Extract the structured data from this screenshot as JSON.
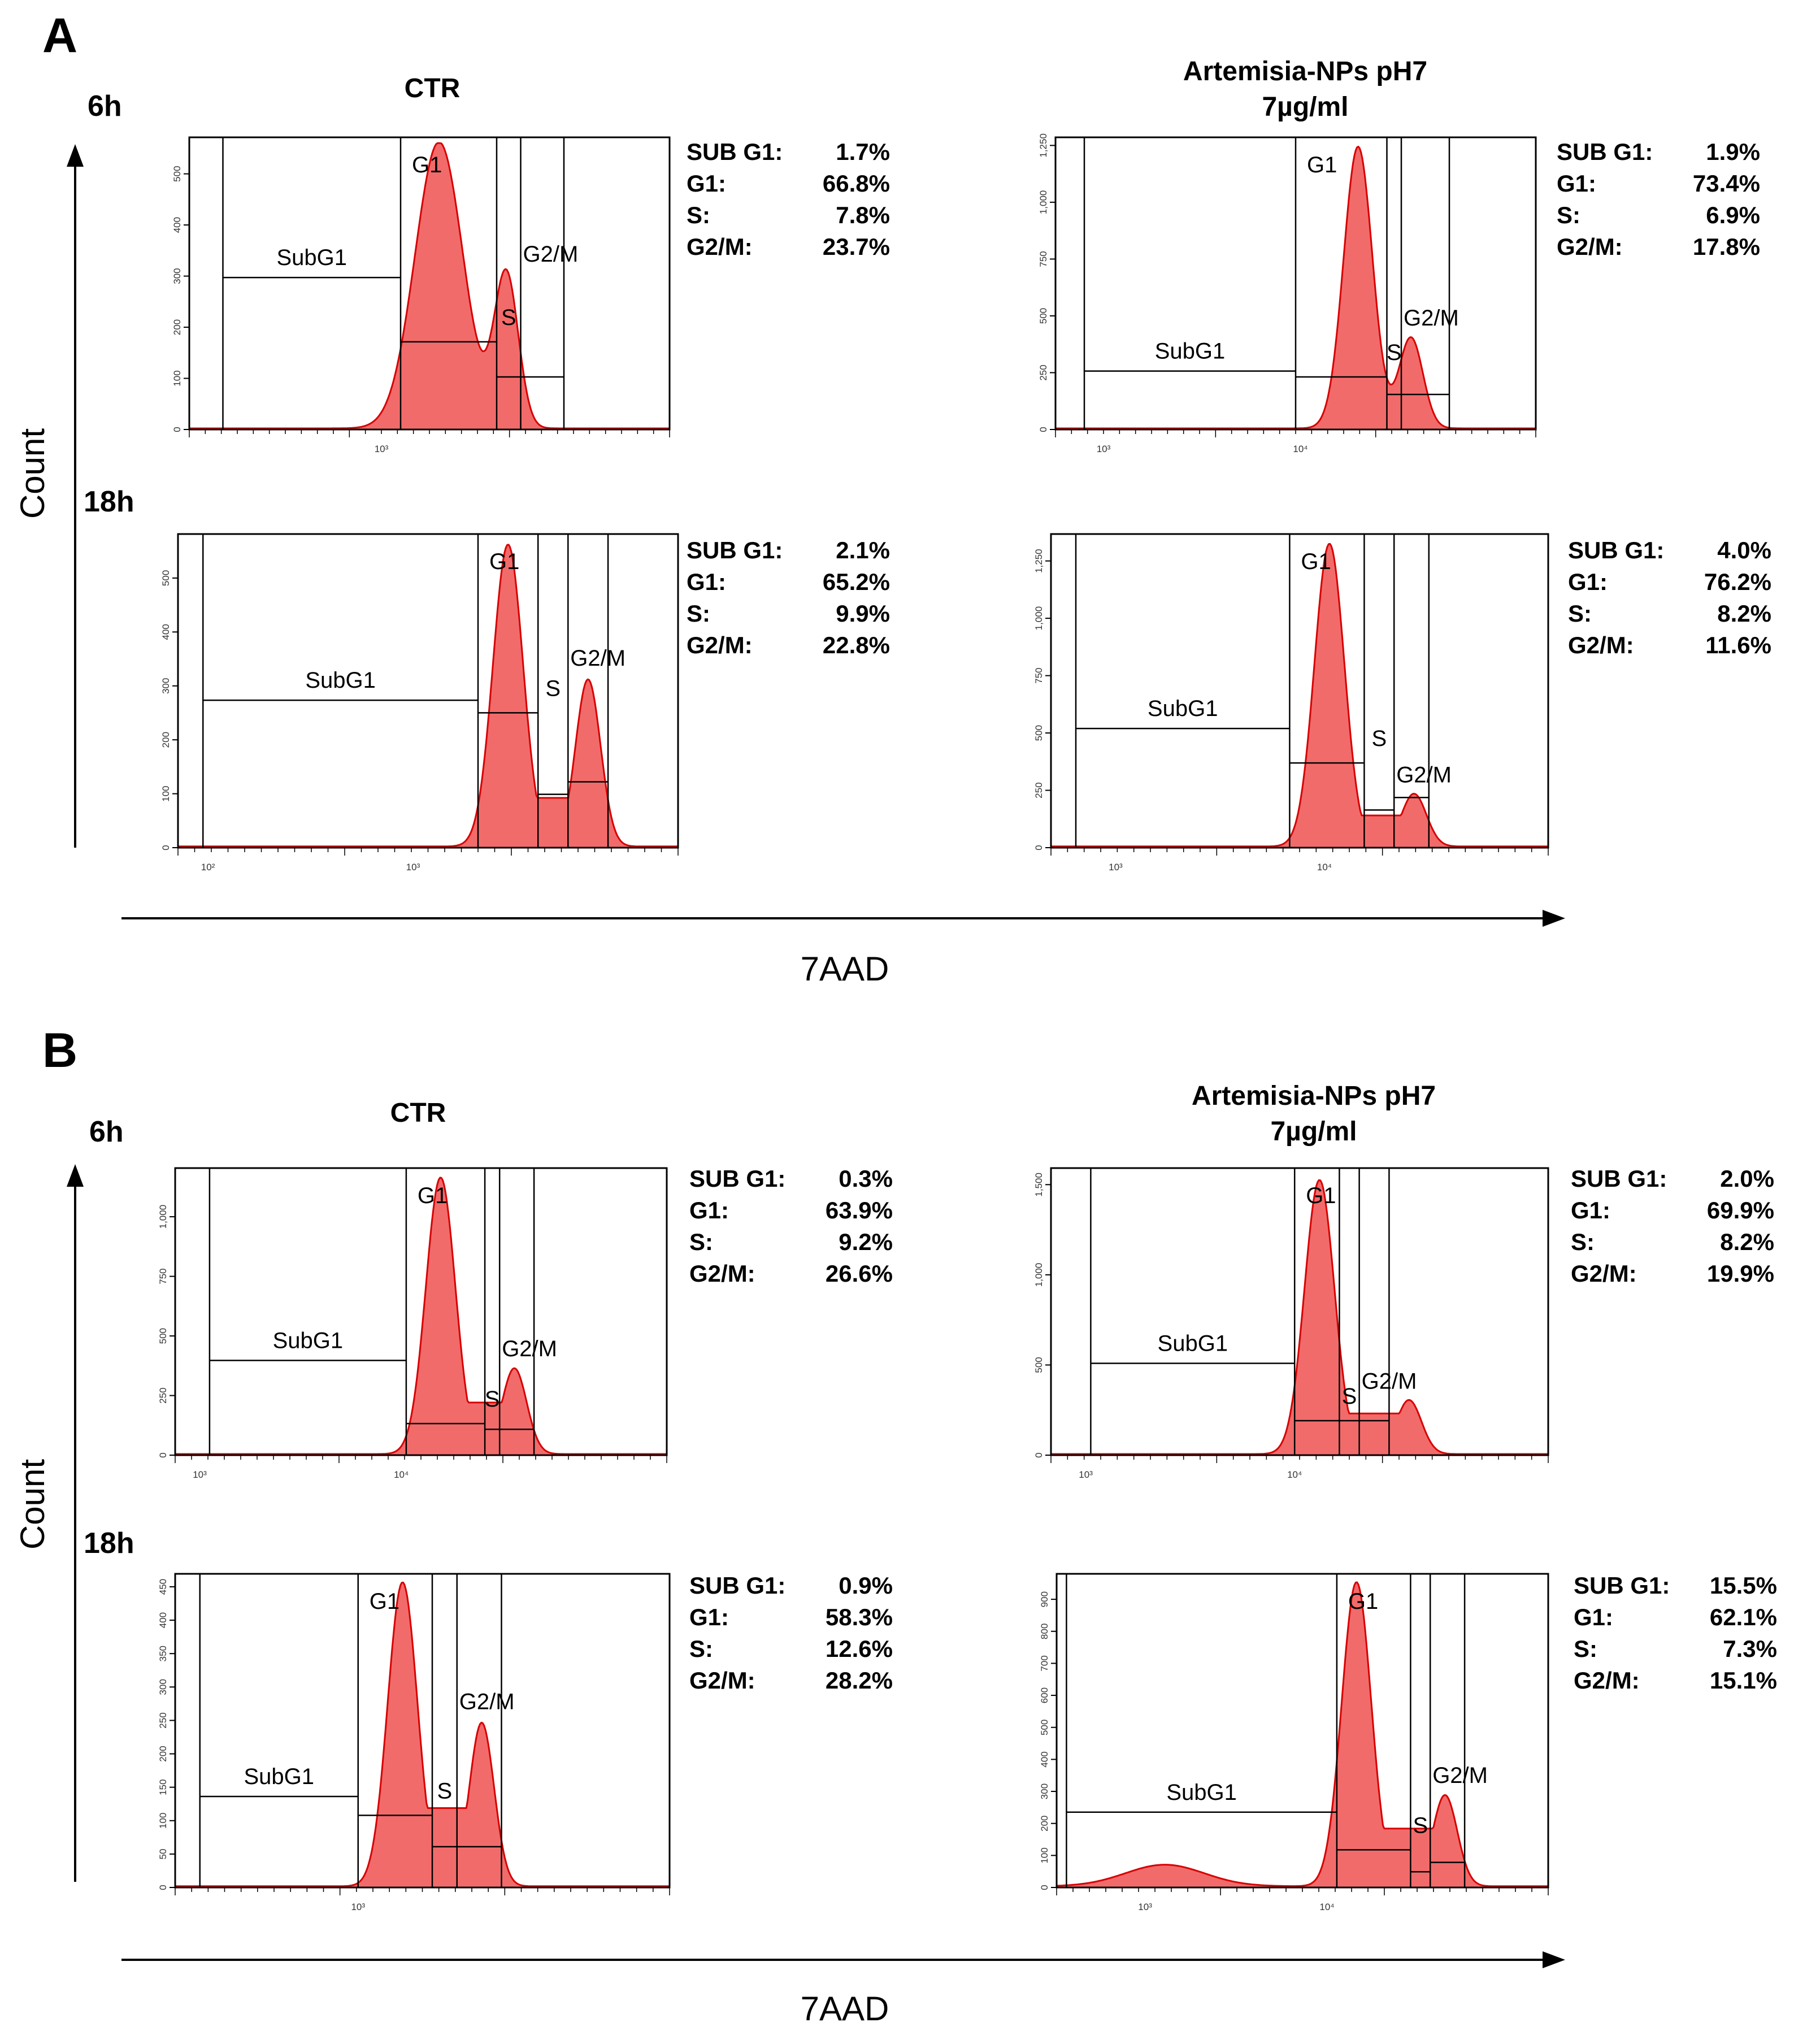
{
  "panels": [
    {
      "letter": "A",
      "x_axis_title": "7AAD",
      "y_axis_title": "Count",
      "columns": [
        {
          "title_line1": "CTR",
          "title_line2": ""
        },
        {
          "title_line1": "Artemisia-NPs  pH7",
          "title_line2": "7µg/ml"
        }
      ],
      "rows": [
        {
          "time": "6h"
        },
        {
          "time": "18h"
        }
      ]
    },
    {
      "letter": "B",
      "x_axis_title": "7AAD",
      "y_axis_title": "Count",
      "columns": [
        {
          "title_line1": "CTR",
          "title_line2": ""
        },
        {
          "title_line1": "Artemisia-NPs  pH7",
          "title_line2": "7µg/ml"
        }
      ],
      "rows": [
        {
          "time": "6h"
        },
        {
          "time": "18h"
        }
      ]
    }
  ],
  "gate_labels": {
    "subg1": "SubG1",
    "g1": "G1",
    "s": "S",
    "g2m": "G2/M"
  },
  "stat_labels": {
    "subg1": "SUB G1:",
    "g1": "G1:",
    "s": "S:",
    "g2m": "G2/M:"
  },
  "colors": {
    "histogram_fill": "#f26b6b",
    "histogram_stroke": "#d80000",
    "gate_line": "#000000"
  },
  "chart_data": [
    {
      "type": "area",
      "panel": "A",
      "time": "6h",
      "condition": "CTR",
      "xlabel": "7AAD",
      "ylabel": "Count",
      "y_ticks": [
        "0",
        "100",
        "200",
        "300",
        "400",
        "500"
      ],
      "y_max": 560,
      "x_ticks": [
        "10³"
      ],
      "stats": {
        "subg1": "1.7%",
        "g1": "66.8%",
        "s": "7.8%",
        "g2m": "23.7%"
      },
      "peaks": {
        "g1_peak_count": 560,
        "s_trough_count": 100,
        "g2m_peak_count": 300
      }
    },
    {
      "type": "area",
      "panel": "A",
      "time": "6h",
      "condition": "Artemisia-NPs pH7 7µg/ml",
      "xlabel": "7AAD",
      "ylabel": "Count",
      "y_ticks": [
        "0",
        "250",
        "500",
        "750",
        "1,000",
        "1,250"
      ],
      "y_max": 1260,
      "x_ticks": [
        "10³",
        "10⁴"
      ],
      "stats": {
        "subg1": "1.9%",
        "g1": "73.4%",
        "s": "6.9%",
        "g2m": "17.8%"
      },
      "peaks": {
        "g1_peak_count": 1240,
        "s_trough_count": 200,
        "g2m_peak_count": 400
      }
    },
    {
      "type": "area",
      "panel": "A",
      "time": "18h",
      "condition": "CTR",
      "xlabel": "7AAD",
      "ylabel": "Count",
      "y_ticks": [
        "0",
        "100",
        "200",
        "300",
        "400",
        "500"
      ],
      "y_max": 570,
      "x_ticks": [
        "10²",
        "10³"
      ],
      "stats": {
        "subg1": "2.1%",
        "g1": "65.2%",
        "s": "9.9%",
        "g2m": "22.8%"
      },
      "peaks": {
        "g1_peak_count": 560,
        "s_trough_count": 100,
        "g2m_peak_count": 310
      }
    },
    {
      "type": "area",
      "panel": "A",
      "time": "18h",
      "condition": "Artemisia-NPs pH7 7µg/ml",
      "xlabel": "7AAD",
      "ylabel": "Count",
      "y_ticks": [
        "0",
        "250",
        "500",
        "750",
        "1,000",
        "1,250"
      ],
      "y_max": 1340,
      "x_ticks": [
        "10³",
        "10⁴"
      ],
      "stats": {
        "subg1": "4.0%",
        "g1": "76.2%",
        "s": "8.2%",
        "g2m": "11.6%"
      },
      "peaks": {
        "g1_peak_count": 1320,
        "s_trough_count": 150,
        "g2m_peak_count": 230
      }
    },
    {
      "type": "area",
      "panel": "B",
      "time": "6h",
      "condition": "CTR",
      "xlabel": "7AAD",
      "ylabel": "Count",
      "y_ticks": [
        "0",
        "250",
        "500",
        "750",
        "1,000"
      ],
      "y_max": 1180,
      "x_ticks": [
        "10³",
        "10⁴"
      ],
      "stats": {
        "subg1": "0.3%",
        "g1": "63.9%",
        "s": "9.2%",
        "g2m": "26.6%"
      },
      "peaks": {
        "g1_peak_count": 1160,
        "s_trough_count": 240,
        "g2m_peak_count": 360
      }
    },
    {
      "type": "area",
      "panel": "B",
      "time": "6h",
      "condition": "Artemisia-NPs pH7 7µg/ml",
      "xlabel": "7AAD",
      "ylabel": "Count",
      "y_ticks": [
        "0",
        "500",
        "1,000",
        "1,500"
      ],
      "y_max": 1560,
      "x_ticks": [
        "10³",
        "10⁴"
      ],
      "stats": {
        "subg1": "2.0%",
        "g1": "69.9%",
        "s": "8.2%",
        "g2m": "19.9%"
      },
      "peaks": {
        "g1_peak_count": 1520,
        "s_trough_count": 250,
        "g2m_peak_count": 300
      }
    },
    {
      "type": "area",
      "panel": "B",
      "time": "18h",
      "condition": "CTR",
      "xlabel": "7AAD",
      "ylabel": "Count",
      "y_ticks": [
        "0",
        "50",
        "100",
        "150",
        "200",
        "250",
        "300",
        "350",
        "400",
        "450"
      ],
      "y_max": 460,
      "x_ticks": [
        "10³"
      ],
      "stats": {
        "subg1": "0.9%",
        "g1": "58.3%",
        "s": "12.6%",
        "g2m": "28.2%"
      },
      "peaks": {
        "g1_peak_count": 455,
        "s_trough_count": 130,
        "g2m_peak_count": 245
      }
    },
    {
      "type": "area",
      "panel": "B",
      "time": "18h",
      "condition": "Artemisia-NPs pH7 7µg/ml",
      "xlabel": "7AAD",
      "ylabel": "Count",
      "y_ticks": [
        "0",
        "100",
        "200",
        "300",
        "400",
        "500",
        "600",
        "700",
        "800",
        "900"
      ],
      "y_max": 960,
      "x_ticks": [
        "10³",
        "10⁴"
      ],
      "stats": {
        "subg1": "15.5%",
        "g1": "62.1%",
        "s": "7.3%",
        "g2m": "15.1%"
      },
      "peaks": {
        "g1_peak_count": 950,
        "s_trough_count": 200,
        "g2m_peak_count": 285
      }
    }
  ]
}
